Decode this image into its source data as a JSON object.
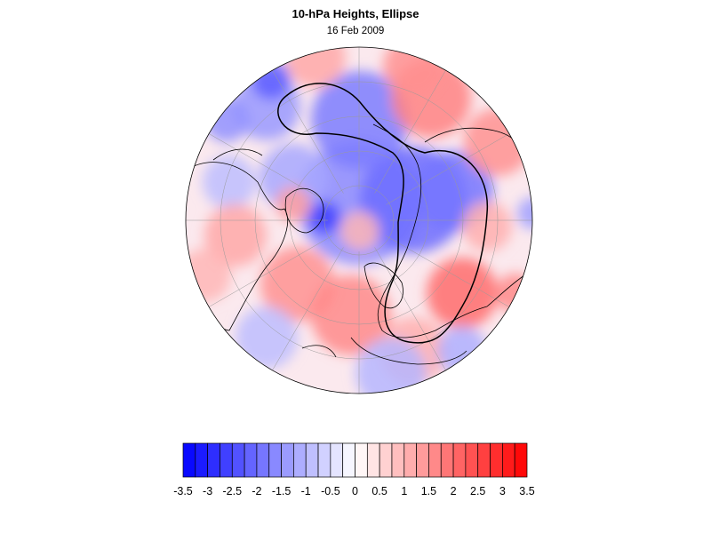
{
  "map": {
    "title": "10-hPa Heights, Ellipse",
    "date": "16 Feb 2009",
    "projection": "north-polar-stereographic",
    "colors": {
      "negative": "#0000ff",
      "positive": "#ff0000",
      "neutral": "#ffffff",
      "land_outline": "#000000",
      "ellipse": "#000000",
      "grid": "#9a9a9a"
    }
  },
  "colorbar": {
    "levels": [
      -3.5,
      -3.25,
      -3,
      -2.75,
      -2.5,
      -2.25,
      -2,
      -1.75,
      -1.5,
      -1.25,
      -1,
      -0.75,
      -0.5,
      -0.25,
      0,
      0.25,
      0.5,
      0.75,
      1,
      1.25,
      1.5,
      1.75,
      2,
      2.25,
      2.5,
      2.75,
      3,
      3.25,
      3.5
    ],
    "tick_labels": [
      "-3.5",
      "-3",
      "-2.5",
      "-2",
      "-1.5",
      "-1",
      "-0.5",
      "0",
      "0.5",
      "1",
      "1.5",
      "2",
      "2.5",
      "3",
      "3.5"
    ]
  }
}
